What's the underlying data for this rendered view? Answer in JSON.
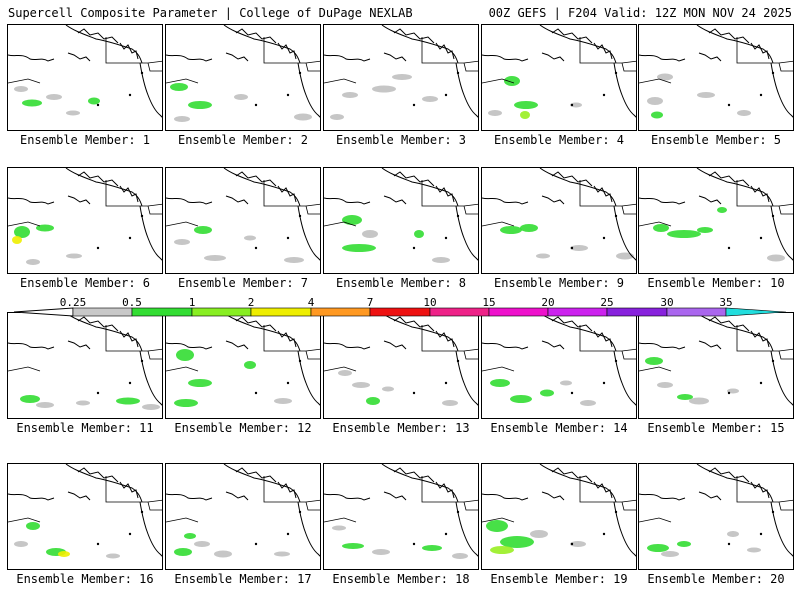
{
  "header": {
    "left_title": "Supercell Composite Parameter | College of DuPage NEXLAB",
    "right_title": "00Z GEFS | F204 Valid: 12Z MON NOV 24 2025"
  },
  "members": [
    {
      "label": "Ensemble Member: 1"
    },
    {
      "label": "Ensemble Member: 2"
    },
    {
      "label": "Ensemble Member: 3"
    },
    {
      "label": "Ensemble Member: 4"
    },
    {
      "label": "Ensemble Member: 5"
    },
    {
      "label": "Ensemble Member: 6"
    },
    {
      "label": "Ensemble Member: 7"
    },
    {
      "label": "Ensemble Member: 8"
    },
    {
      "label": "Ensemble Member: 9"
    },
    {
      "label": "Ensemble Member: 10"
    },
    {
      "label": "Ensemble Member: 11"
    },
    {
      "label": "Ensemble Member: 12"
    },
    {
      "label": "Ensemble Member: 13"
    },
    {
      "label": "Ensemble Member: 14"
    },
    {
      "label": "Ensemble Member: 15"
    },
    {
      "label": "Ensemble Member: 16"
    },
    {
      "label": "Ensemble Member: 17"
    },
    {
      "label": "Ensemble Member: 18"
    },
    {
      "label": "Ensemble Member: 19"
    },
    {
      "label": "Ensemble Member: 20"
    }
  ],
  "colorbar": {
    "ticks": [
      "0.25",
      "0.5",
      "1",
      "2",
      "4",
      "7",
      "10",
      "15",
      "20",
      "25",
      "30",
      "35"
    ],
    "colors": [
      "#c8c8c8",
      "#33dd33",
      "#88ee22",
      "#eeee00",
      "#ff9922",
      "#ee1111",
      "#ee2288",
      "#ee11cc",
      "#cc22ee",
      "#8822dd",
      "#aa66ee",
      "#22dddd"
    ]
  },
  "field_colors": {
    "gray": "#c0c0c0",
    "green": "#33dd33",
    "lime": "#99ee22",
    "yellow": "#eeee00"
  }
}
